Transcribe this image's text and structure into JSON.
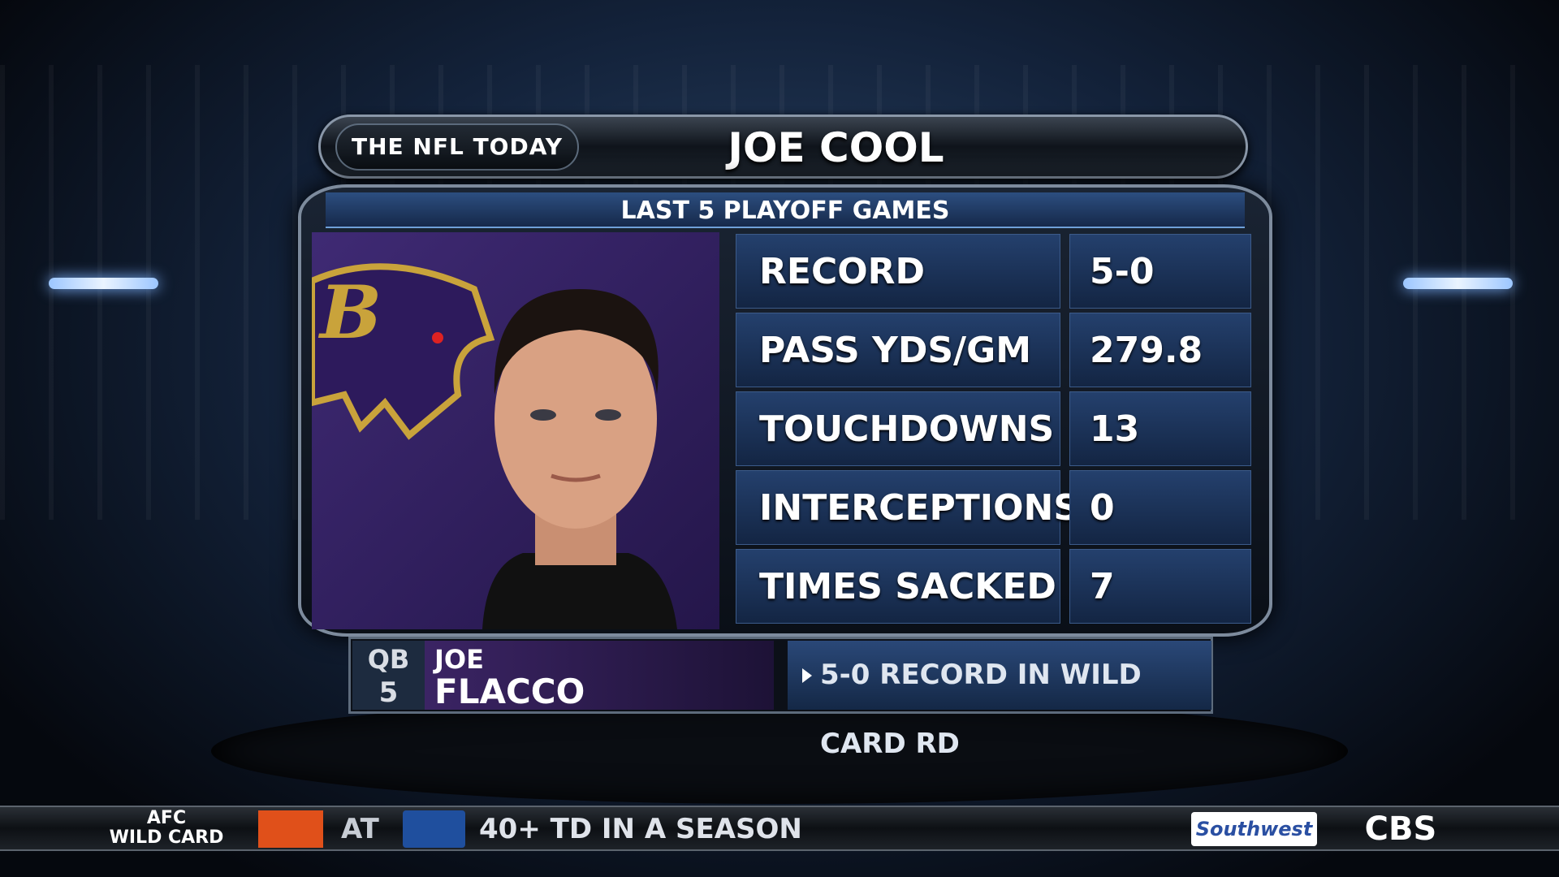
{
  "header": {
    "show": "THE NFL TODAY",
    "title": "JOE COOL"
  },
  "panel": {
    "subtitle": "LAST 5 PLAYOFF GAMES",
    "stats": [
      {
        "label": "RECORD",
        "value": "5-0"
      },
      {
        "label": "PASS YDS/GM",
        "value": "279.8"
      },
      {
        "label": "TOUCHDOWNS",
        "value": "13"
      },
      {
        "label": "INTERCEPTIONS",
        "value": "0"
      },
      {
        "label": "TIMES SACKED",
        "value": "7"
      }
    ]
  },
  "player": {
    "position": "QB",
    "number": "5",
    "first_name": "JOE",
    "last_name": "FLACCO",
    "note": "5-0 RECORD IN WILD CARD RD"
  },
  "ticker": {
    "line1": "AFC",
    "line2": "WILD CARD",
    "at": "AT",
    "headline": "40+ TD IN A SEASON",
    "sponsor": "Southwest",
    "network": "CBS"
  }
}
